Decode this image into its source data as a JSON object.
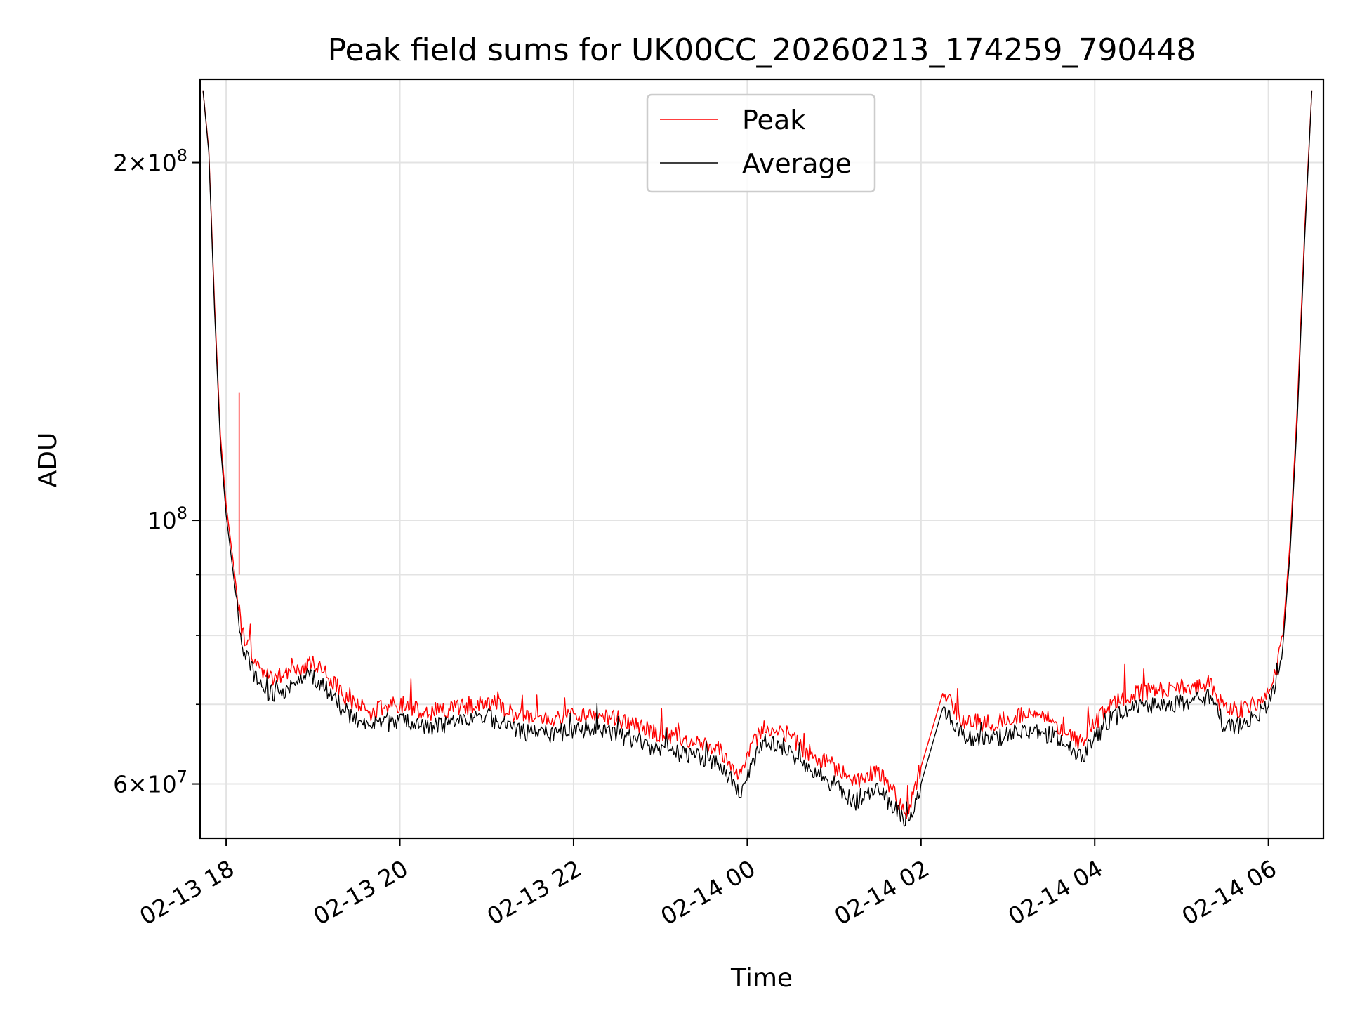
{
  "chart_data": {
    "type": "line",
    "title": "Peak field sums for UK00CC_20260213_174259_790448",
    "xlabel": "Time",
    "ylabel": "ADU",
    "yscale": "log",
    "ylim": [
      54000000,
      235000000
    ],
    "xlim": [
      "2026-02-13 17:42",
      "2026-02-14 06:38"
    ],
    "grid": true,
    "legend_position": "upper center",
    "x_ticks": [
      {
        "value": "2026-02-13 18:00",
        "label": "02-13 18"
      },
      {
        "value": "2026-02-13 20:00",
        "label": "02-13 20"
      },
      {
        "value": "2026-02-13 22:00",
        "label": "02-13 22"
      },
      {
        "value": "2026-02-14 00:00",
        "label": "02-14 00"
      },
      {
        "value": "2026-02-14 02:00",
        "label": "02-14 02"
      },
      {
        "value": "2026-02-14 04:00",
        "label": "02-14 04"
      },
      {
        "value": "2026-02-14 06:00",
        "label": "02-14 06"
      }
    ],
    "y_ticks_major": [
      {
        "value": 60000000,
        "base": "6",
        "exp": "7"
      },
      {
        "value": 100000000,
        "base": "",
        "exp": "8"
      },
      {
        "value": 200000000,
        "base": "2",
        "exp": "8"
      }
    ],
    "y_ticks_minor": [
      70000000,
      80000000,
      90000000
    ],
    "series": [
      {
        "name": "Peak",
        "color": "#ff0000",
        "x": [
          "2026-02-13 17:44",
          "2026-02-13 17:48",
          "2026-02-13 17:52",
          "2026-02-13 17:56",
          "2026-02-13 18:00",
          "2026-02-13 18:06",
          "2026-02-13 18:10",
          "2026-02-13 18:12",
          "2026-02-13 18:15",
          "2026-02-13 18:20",
          "2026-02-13 18:30",
          "2026-02-13 18:40",
          "2026-02-13 18:50",
          "2026-02-13 19:00",
          "2026-02-13 19:10",
          "2026-02-13 19:20",
          "2026-02-13 19:30",
          "2026-02-13 19:40",
          "2026-02-13 19:50",
          "2026-02-13 20:00",
          "2026-02-13 20:20",
          "2026-02-13 20:40",
          "2026-02-13 21:00",
          "2026-02-13 21:20",
          "2026-02-13 21:40",
          "2026-02-13 22:00",
          "2026-02-13 22:20",
          "2026-02-13 22:40",
          "2026-02-13 23:00",
          "2026-02-13 23:20",
          "2026-02-13 23:40",
          "2026-02-13 23:55",
          "2026-02-14 00:10",
          "2026-02-14 00:25",
          "2026-02-14 00:40",
          "2026-02-14 01:00",
          "2026-02-14 01:15",
          "2026-02-14 01:30",
          "2026-02-14 01:45",
          "2026-02-14 01:50",
          "2026-02-14 02:00",
          "2026-02-14 02:15",
          "2026-02-14 02:30",
          "2026-02-14 02:50",
          "2026-02-14 03:10",
          "2026-02-14 03:30",
          "2026-02-14 03:50",
          "2026-02-14 04:10",
          "2026-02-14 04:30",
          "2026-02-14 04:50",
          "2026-02-14 05:10",
          "2026-02-14 05:20",
          "2026-02-14 05:30",
          "2026-02-14 05:45",
          "2026-02-14 06:00",
          "2026-02-14 06:05",
          "2026-02-14 06:10",
          "2026-02-14 06:15",
          "2026-02-14 06:20",
          "2026-02-14 06:25",
          "2026-02-14 06:30"
        ],
        "y": [
          230000000,
          205000000,
          152000000,
          118000000,
          103000000,
          90000000,
          82000000,
          80000000,
          78500000,
          76000000,
          73500000,
          73800000,
          75000000,
          76000000,
          74000000,
          71500000,
          70000000,
          69000000,
          69500000,
          70000000,
          69000000,
          69500000,
          70500000,
          68500000,
          68000000,
          68500000,
          68500000,
          67500000,
          66000000,
          65500000,
          64500000,
          61000000,
          67000000,
          66500000,
          64000000,
          62000000,
          60000000,
          61500000,
          58000000,
          56500000,
          62000000,
          71500000,
          67500000,
          67500000,
          68500000,
          68000000,
          65000000,
          70000000,
          71500000,
          72000000,
          72500000,
          72800000,
          69000000,
          69500000,
          71500000,
          74000000,
          80000000,
          96000000,
          125000000,
          175000000,
          230000000
        ]
      },
      {
        "name": "Average",
        "color": "#000000",
        "x": [
          "2026-02-13 17:44",
          "2026-02-13 17:48",
          "2026-02-13 17:52",
          "2026-02-13 17:56",
          "2026-02-13 18:00",
          "2026-02-13 18:06",
          "2026-02-13 18:10",
          "2026-02-13 18:12",
          "2026-02-13 18:15",
          "2026-02-13 18:20",
          "2026-02-13 18:30",
          "2026-02-13 18:40",
          "2026-02-13 18:50",
          "2026-02-13 19:00",
          "2026-02-13 19:10",
          "2026-02-13 19:20",
          "2026-02-13 19:30",
          "2026-02-13 19:40",
          "2026-02-13 19:50",
          "2026-02-13 20:00",
          "2026-02-13 20:20",
          "2026-02-13 20:40",
          "2026-02-13 21:00",
          "2026-02-13 21:20",
          "2026-02-13 21:40",
          "2026-02-13 22:00",
          "2026-02-13 22:20",
          "2026-02-13 22:40",
          "2026-02-13 23:00",
          "2026-02-13 23:20",
          "2026-02-13 23:40",
          "2026-02-13 23:55",
          "2026-02-14 00:10",
          "2026-02-14 00:25",
          "2026-02-14 00:40",
          "2026-02-14 01:00",
          "2026-02-14 01:15",
          "2026-02-14 01:30",
          "2026-02-14 01:45",
          "2026-02-14 01:50",
          "2026-02-14 02:00",
          "2026-02-14 02:15",
          "2026-02-14 02:30",
          "2026-02-14 02:50",
          "2026-02-14 03:10",
          "2026-02-14 03:30",
          "2026-02-14 03:50",
          "2026-02-14 04:10",
          "2026-02-14 04:30",
          "2026-02-14 04:50",
          "2026-02-14 05:10",
          "2026-02-14 05:20",
          "2026-02-14 05:30",
          "2026-02-14 05:45",
          "2026-02-14 06:00",
          "2026-02-14 06:05",
          "2026-02-14 06:10",
          "2026-02-14 06:15",
          "2026-02-14 06:20",
          "2026-02-14 06:25",
          "2026-02-14 06:30"
        ],
        "y": [
          230000000,
          204000000,
          150000000,
          116000000,
          101000000,
          88000000,
          80000000,
          78000000,
          76500000,
          74000000,
          71500000,
          72000000,
          73500000,
          74000000,
          72000000,
          69500000,
          68000000,
          67000000,
          67500000,
          68000000,
          67000000,
          67500000,
          68500000,
          66500000,
          66000000,
          66500000,
          66500000,
          65500000,
          64000000,
          63500000,
          62500000,
          59000000,
          65000000,
          64500000,
          62000000,
          60000000,
          58000000,
          59500000,
          56500000,
          55500000,
          60000000,
          69500000,
          65500000,
          65500000,
          66500000,
          66000000,
          63000000,
          68000000,
          69500000,
          70000000,
          70500000,
          70800000,
          67000000,
          67500000,
          70000000,
          72500000,
          78500000,
          94000000,
          122000000,
          172000000,
          230000000
        ]
      }
    ],
    "annotations": [
      {
        "series": "Peak",
        "x": "2026-02-13 18:09",
        "y": 128000000,
        "note": "spike"
      }
    ]
  }
}
